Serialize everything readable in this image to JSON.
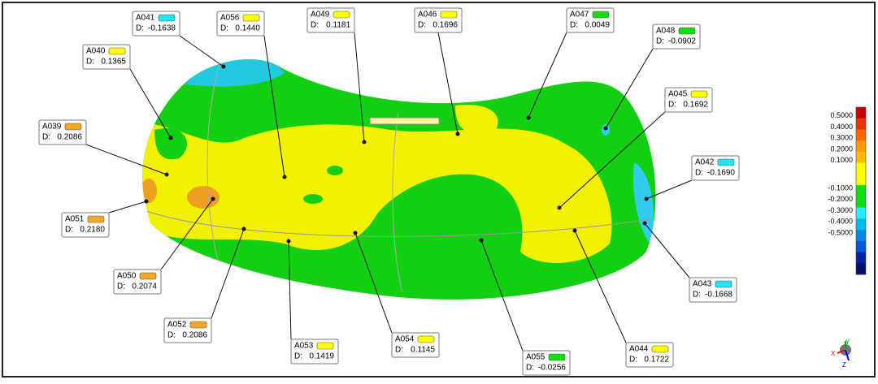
{
  "callouts": [
    {
      "id": "A041",
      "color": "#22e5f0",
      "d_label": "D:",
      "d": "-0.1638"
    },
    {
      "id": "A056",
      "color": "#ffff00",
      "d_label": "D:",
      "d": "0.1440"
    },
    {
      "id": "A049",
      "color": "#ffff00",
      "d_label": "D:",
      "d": "0.1181"
    },
    {
      "id": "A046",
      "color": "#ffff00",
      "d_label": "D:",
      "d": "0.1696"
    },
    {
      "id": "A047",
      "color": "#11dd11",
      "d_label": "D:",
      "d": "0.0049"
    },
    {
      "id": "A048",
      "color": "#11dd11",
      "d_label": "D:",
      "d": "-0.0902"
    },
    {
      "id": "A040",
      "color": "#ffff00",
      "d_label": "D:",
      "d": "0.1365"
    },
    {
      "id": "A045",
      "color": "#ffff00",
      "d_label": "D:",
      "d": "0.1692"
    },
    {
      "id": "A039",
      "color": "#f5a623",
      "d_label": "D:",
      "d": "0.2086"
    },
    {
      "id": "A042",
      "color": "#22e5f0",
      "d_label": "D:",
      "d": "-0.1690"
    },
    {
      "id": "A051",
      "color": "#f5a623",
      "d_label": "D:",
      "d": "0.2180"
    },
    {
      "id": "A050",
      "color": "#f5a623",
      "d_label": "D:",
      "d": "0.2074"
    },
    {
      "id": "A043",
      "color": "#22e5f0",
      "d_label": "D:",
      "d": "-0.1668"
    },
    {
      "id": "A052",
      "color": "#f5a623",
      "d_label": "D:",
      "d": "0.2086"
    },
    {
      "id": "A053",
      "color": "#ffff00",
      "d_label": "D:",
      "d": "0.1419"
    },
    {
      "id": "A054",
      "color": "#ffff00",
      "d_label": "D:",
      "d": "0.1145"
    },
    {
      "id": "A055",
      "color": "#11dd11",
      "d_label": "D:",
      "d": "-0.0256"
    },
    {
      "id": "A044",
      "color": "#ffff00",
      "d_label": "D:",
      "d": "0.1722"
    }
  ],
  "legend": {
    "labels": [
      "0.5000",
      "0.4000",
      "0.3000",
      "0.2000",
      "0.1000",
      "-0.1000",
      "-0.2000",
      "-0.3000",
      "-0.4000",
      "-0.5000"
    ],
    "colors": [
      "#cc0000",
      "#ee3300",
      "#ff6600",
      "#ff9900",
      "#ffbb00",
      "#ffff00",
      "#ffff00",
      "#11dd11",
      "#11dd11",
      "#22eeff",
      "#00bbee",
      "#0088ee",
      "#0055dd",
      "#0022aa",
      "#001166"
    ]
  },
  "triad": {
    "x": "X",
    "y": "Y",
    "z": "Z"
  }
}
